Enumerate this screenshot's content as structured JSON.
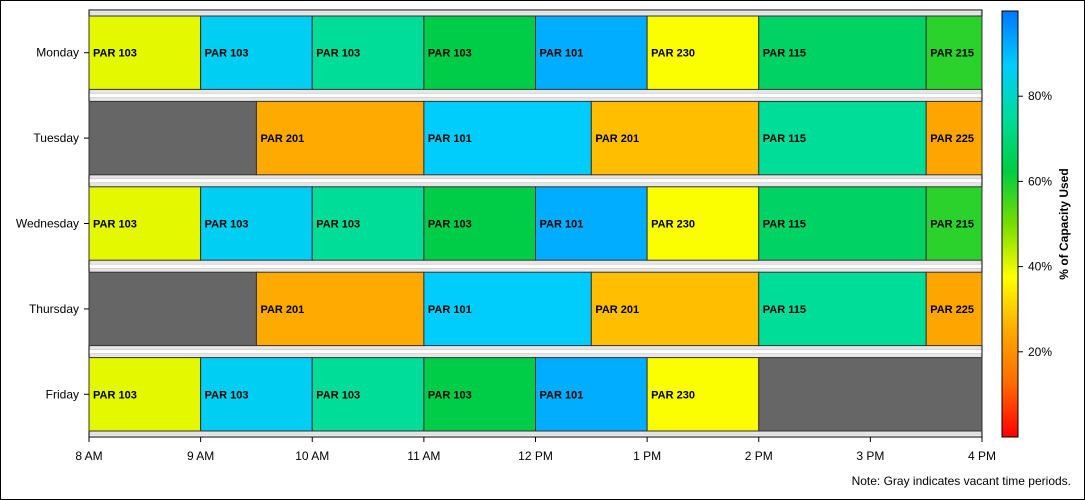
{
  "chart_data": {
    "type": "gantt",
    "x_ticks": [
      "8 AM",
      "9 AM",
      "10 AM",
      "11 AM",
      "12 PM",
      "1 PM",
      "2 PM",
      "3 PM",
      "4 PM"
    ],
    "x_range": [
      8,
      16
    ],
    "days": [
      {
        "name": "Monday",
        "blocks": [
          {
            "start": 8,
            "end": 9,
            "label": "PAR 103",
            "pct": 40
          },
          {
            "start": 9,
            "end": 10,
            "label": "PAR 103",
            "pct": 86
          },
          {
            "start": 10,
            "end": 11,
            "label": "PAR 103",
            "pct": 75
          },
          {
            "start": 11,
            "end": 12,
            "label": "PAR 103",
            "pct": 63
          },
          {
            "start": 12,
            "end": 13,
            "label": "PAR 101",
            "pct": 92
          },
          {
            "start": 13,
            "end": 14,
            "label": "PAR 230",
            "pct": 38
          },
          {
            "start": 14,
            "end": 15.5,
            "label": "PAR 115",
            "pct": 67
          },
          {
            "start": 15.5,
            "end": 16,
            "label": "PAR 215",
            "pct": 58
          }
        ]
      },
      {
        "name": "Tuesday",
        "blocks": [
          {
            "start": 8,
            "end": 9.5,
            "label": "",
            "vacant": true
          },
          {
            "start": 9.5,
            "end": 11,
            "label": "PAR 201",
            "pct": 25
          },
          {
            "start": 11,
            "end": 12.5,
            "label": "PAR 101",
            "pct": 87
          },
          {
            "start": 12.5,
            "end": 14,
            "label": "PAR 201",
            "pct": 28
          },
          {
            "start": 14,
            "end": 15.5,
            "label": "PAR 115",
            "pct": 75
          },
          {
            "start": 15.5,
            "end": 16,
            "label": "PAR 225",
            "pct": 24
          }
        ]
      },
      {
        "name": "Wednesday",
        "blocks": [
          {
            "start": 8,
            "end": 9,
            "label": "PAR 103",
            "pct": 40
          },
          {
            "start": 9,
            "end": 10,
            "label": "PAR 103",
            "pct": 86
          },
          {
            "start": 10,
            "end": 11,
            "label": "PAR 103",
            "pct": 75
          },
          {
            "start": 11,
            "end": 12,
            "label": "PAR 103",
            "pct": 63
          },
          {
            "start": 12,
            "end": 13,
            "label": "PAR 101",
            "pct": 92
          },
          {
            "start": 13,
            "end": 14,
            "label": "PAR 230",
            "pct": 38
          },
          {
            "start": 14,
            "end": 15.5,
            "label": "PAR 115",
            "pct": 67
          },
          {
            "start": 15.5,
            "end": 16,
            "label": "PAR 215",
            "pct": 58
          }
        ]
      },
      {
        "name": "Thursday",
        "blocks": [
          {
            "start": 8,
            "end": 9.5,
            "label": "",
            "vacant": true
          },
          {
            "start": 9.5,
            "end": 11,
            "label": "PAR 201",
            "pct": 25
          },
          {
            "start": 11,
            "end": 12.5,
            "label": "PAR 101",
            "pct": 87
          },
          {
            "start": 12.5,
            "end": 14,
            "label": "PAR 201",
            "pct": 28
          },
          {
            "start": 14,
            "end": 15.5,
            "label": "PAR 115",
            "pct": 75
          },
          {
            "start": 15.5,
            "end": 16,
            "label": "PAR 225",
            "pct": 24
          }
        ]
      },
      {
        "name": "Friday",
        "blocks": [
          {
            "start": 8,
            "end": 9,
            "label": "PAR 103",
            "pct": 40
          },
          {
            "start": 9,
            "end": 10,
            "label": "PAR 103",
            "pct": 86
          },
          {
            "start": 10,
            "end": 11,
            "label": "PAR 103",
            "pct": 75
          },
          {
            "start": 11,
            "end": 12,
            "label": "PAR 103",
            "pct": 63
          },
          {
            "start": 12,
            "end": 13,
            "label": "PAR 101",
            "pct": 92
          },
          {
            "start": 13,
            "end": 14,
            "label": "PAR 230",
            "pct": 38
          },
          {
            "start": 14,
            "end": 16,
            "label": "",
            "vacant": true
          }
        ]
      }
    ],
    "colorbar": {
      "label": "% of Capacity Used",
      "ticks": [
        "20%",
        "40%",
        "60%",
        "80%"
      ],
      "tick_values": [
        20,
        40,
        60,
        80
      ],
      "range": [
        0,
        100
      ]
    },
    "colors": {
      "vacant": "#666666",
      "lane_bg": "#e6e6e6",
      "gradient": [
        "#ff0000",
        "#ff6a00",
        "#ffaa00",
        "#ffff00",
        "#77dd00",
        "#00cc44",
        "#00dd99",
        "#00ccff",
        "#0077ff"
      ]
    }
  },
  "note": "Note: Gray indicates vacant time periods."
}
